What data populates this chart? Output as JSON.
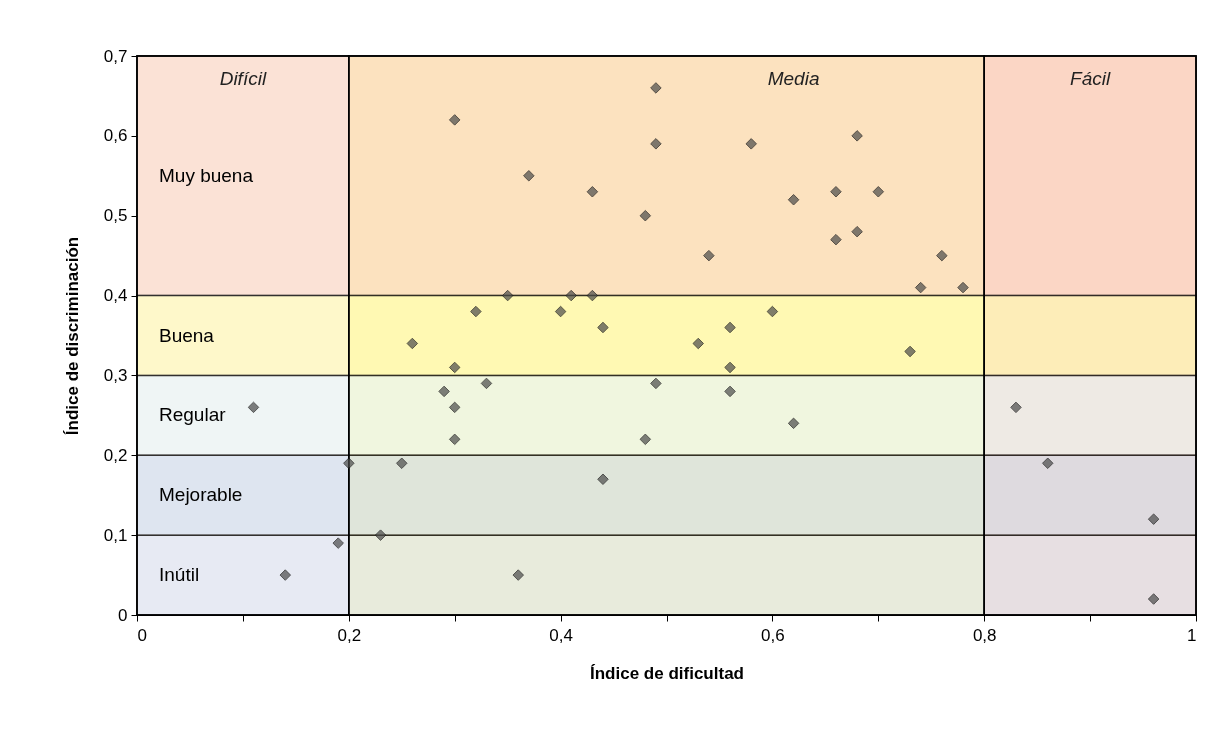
{
  "chart_data": {
    "type": "scatter",
    "xlabel": "Índice de dificultad",
    "ylabel": "Índice de discriminación",
    "x": [
      0.3,
      0.49,
      0.49,
      0.37,
      0.43,
      0.48,
      0.35,
      0.41,
      0.43,
      0.32,
      0.4,
      0.44,
      0.58,
      0.68,
      0.66,
      0.7,
      0.62,
      0.68,
      0.66,
      0.54,
      0.76,
      0.74,
      0.78,
      0.26,
      0.3,
      0.33,
      0.29,
      0.3,
      0.3,
      0.11,
      0.49,
      0.48,
      0.2,
      0.25,
      0.44,
      0.23,
      0.19,
      0.14,
      0.36,
      0.6,
      0.56,
      0.53,
      0.73,
      0.56,
      0.56,
      0.62,
      0.83,
      0.86,
      0.96,
      0.96
    ],
    "series": [
      {
        "color": "#4a4a4a",
        "values": [
          0.62,
          0.66,
          0.59,
          0.55,
          0.53,
          0.5,
          0.4,
          0.4,
          0.4,
          0.38,
          0.38,
          0.36,
          0.59,
          0.6,
          0.53,
          0.53,
          0.52,
          0.48,
          0.47,
          0.45,
          0.45,
          0.41,
          0.41,
          0.34,
          0.31,
          0.29,
          0.28,
          0.26,
          0.22,
          0.26,
          0.29,
          0.22,
          0.19,
          0.19,
          0.17,
          0.1,
          0.09,
          0.05,
          0.05,
          0.38,
          0.36,
          0.34,
          0.33,
          0.31,
          0.28,
          0.24,
          0.26,
          0.19,
          0.12,
          0.02
        ]
      }
    ],
    "marker": "diamond",
    "xlim": [
      0,
      1
    ],
    "ylim": [
      0,
      0.7
    ],
    "xticks": [
      0,
      {
        "value": 0.1,
        "label": null
      },
      {
        "value": 0.2,
        "label": "0,2"
      },
      {
        "value": 0.3,
        "label": null
      },
      {
        "value": 0.4,
        "label": "0,4"
      },
      {
        "value": 0.5,
        "label": null
      },
      {
        "value": 0.6,
        "label": "0,6"
      },
      {
        "value": 0.7,
        "label": null
      },
      {
        "value": 0.8,
        "label": "0,8"
      },
      {
        "value": 0.9,
        "label": null
      },
      1
    ],
    "yticks": [
      0,
      {
        "value": 0.1,
        "label": "0,1"
      },
      {
        "value": 0.2,
        "label": "0,2"
      },
      {
        "value": 0.3,
        "label": "0,3"
      },
      {
        "value": 0.4,
        "label": "0,4"
      },
      {
        "value": 0.5,
        "label": "0,5"
      },
      {
        "value": 0.6,
        "label": "0,6"
      },
      {
        "value": 0.7,
        "label": "0,7"
      }
    ],
    "bands": [
      {
        "axis": "x",
        "from": 0,
        "to": 0.2,
        "label": "Difícil",
        "color": "#fdf1ea"
      },
      {
        "axis": "x",
        "from": 0.2,
        "to": 0.8,
        "label": "Media",
        "color": "#fff2b8"
      },
      {
        "axis": "x",
        "from": 0.8,
        "to": 1,
        "label": "Fácil",
        "color": "#fcd8c4"
      },
      {
        "axis": "y",
        "from": 0.4,
        "to": 0.7,
        "label": "Muy buena",
        "color": "#fbd6c6"
      },
      {
        "axis": "y",
        "from": 0.3,
        "to": 0.4,
        "label": "Buena",
        "color": "#ffffb0"
      },
      {
        "axis": "y",
        "from": 0.2,
        "to": 0.3,
        "label": "Regular",
        "color": "#e4faff"
      },
      {
        "axis": "y",
        "from": 0.1,
        "to": 0.2,
        "label": "Mejorable",
        "color": "#c6dcf6"
      },
      {
        "axis": "y",
        "from": 0,
        "to": 0.1,
        "label": "Inútil",
        "color": "#d6e6fb"
      }
    ]
  }
}
